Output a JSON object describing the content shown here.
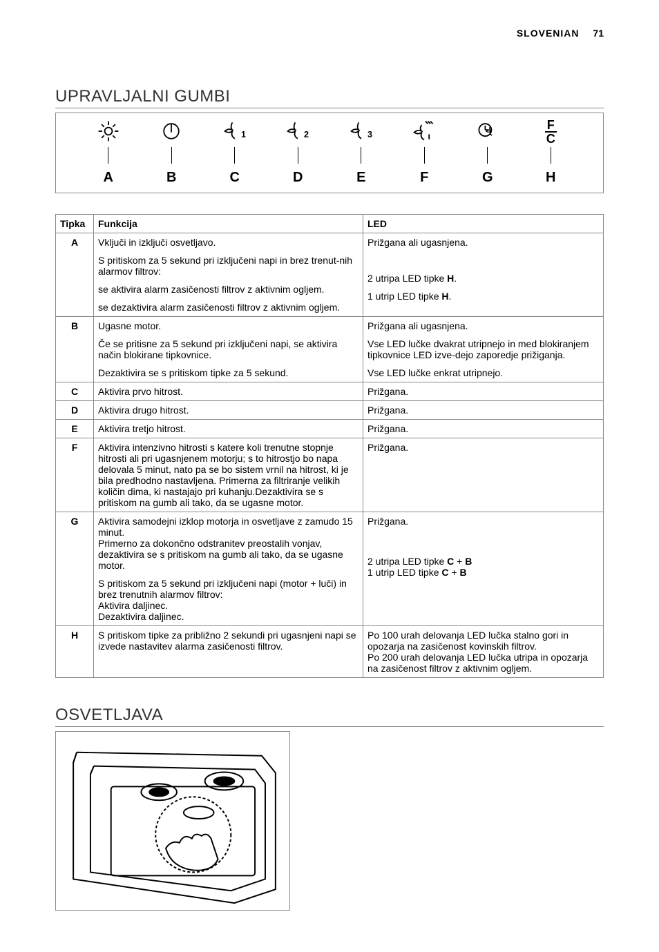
{
  "page": {
    "language_label": "SLOVENIAN",
    "page_number": "71"
  },
  "sections": {
    "controls_title": "UPRAVLJALNI GUMBI",
    "lighting_title": "OSVETLJAVA"
  },
  "controls_labels": [
    "A",
    "B",
    "C",
    "D",
    "E",
    "F",
    "G",
    "H"
  ],
  "controls_icons": [
    {
      "name": "light-icon"
    },
    {
      "name": "power-icon"
    },
    {
      "name": "fan1-icon"
    },
    {
      "name": "fan2-icon"
    },
    {
      "name": "fan3-icon"
    },
    {
      "name": "fan-intensive-icon"
    },
    {
      "name": "timer-icon"
    },
    {
      "name": "fc-icon"
    }
  ],
  "fc_icon": {
    "top": "F",
    "bottom": "C"
  },
  "table": {
    "headers": {
      "key": "Tipka",
      "func": "Funkcija",
      "led": "LED"
    },
    "rows": [
      {
        "key": "A",
        "func_html": [
          "Vključi in izključi osvetljavo.",
          "S pritiskom za 5 sekund pri izključeni napi in brez trenut-nih alarmov filtrov:",
          "se aktivira alarm zasičenosti filtrov z aktivnim ogljem.",
          "se dezaktivira alarm zasičenosti filtrov z aktivnim ogljem."
        ],
        "led_html": [
          "Prižgana ali ugasnjena.",
          " ",
          "2 utripa LED tipke <b>H</b>.",
          "1 utrip LED tipke <b>H</b>."
        ]
      },
      {
        "key": "B",
        "func_html": [
          "Ugasne motor.",
          "Če se pritisne za 5 sekund pri izključeni napi, se aktivira način blokirane tipkovnice.",
          "Dezaktivira se s pritiskom tipke za 5 sekund."
        ],
        "led_html": [
          "Prižgana ali ugasnjena.",
          "Vse LED lučke dvakrat utripnejo in med blokiranjem tipkovnice LED izve-dejo zaporedje prižiganja.",
          "Vse LED lučke enkrat utripnejo."
        ]
      },
      {
        "key": "C",
        "func_html": [
          "Aktivira prvo hitrost."
        ],
        "led_html": [
          "Prižgana."
        ]
      },
      {
        "key": "D",
        "func_html": [
          "Aktivira drugo hitrost."
        ],
        "led_html": [
          "Prižgana."
        ]
      },
      {
        "key": "E",
        "func_html": [
          "Aktivira tretjo hitrost."
        ],
        "led_html": [
          "Prižgana."
        ]
      },
      {
        "key": "F",
        "func_html": [
          "Aktivira intenzivno hitrosti s katere koli trenutne stopnje hitrosti ali pri ugasnjenem motorju; s to hitrostjo bo napa delovala 5 minut, nato pa se bo sistem vrnil na hitrost, ki je bila predhodno nastavljena. Primerna za filtriranje velikih količin dima, ki nastajajo pri kuhanju.Dezaktivira se s pritiskom na gumb ali tako, da se ugasne motor."
        ],
        "led_html": [
          "Prižgana."
        ]
      },
      {
        "key": "G",
        "func_html": [
          "Aktivira samodejni izklop motorja in osvetljave z zamudo 15 minut.<br>Primerno za dokončno odstranitev preostalih vonjav, dezaktivira se s pritiskom na gumb ali tako, da se ugasne motor.",
          "S pritiskom za 5 sekund pri izključeni napi (motor + luči) in brez trenutnih alarmov filtrov:<br>Aktivira daljinec.<br>Dezaktivira daljinec."
        ],
        "led_html": [
          "Prižgana.",
          "<br><br>2 utripa LED tipke <b>C</b> + <b>B</b><br>1 utrip LED tipke <b>C</b> + <b>B</b>"
        ]
      },
      {
        "key": "H",
        "func_html": [
          "S pritiskom tipke za približno 2 sekundi pri ugasnjeni napi se izvede nastavitev alarma zasičenosti filtrov."
        ],
        "led_html": [
          "Po 100 urah delovanja LED lučka stalno gori in opozarja na zasičenost kovinskih filtrov.<br>Po 200 urah delovanja LED lučka utripa in opozarja na zasičenost filtrov z aktivnim ogljem."
        ]
      }
    ]
  },
  "styles": {
    "border_color": "#888888",
    "text_color": "#000000",
    "heading_color": "#333333"
  }
}
